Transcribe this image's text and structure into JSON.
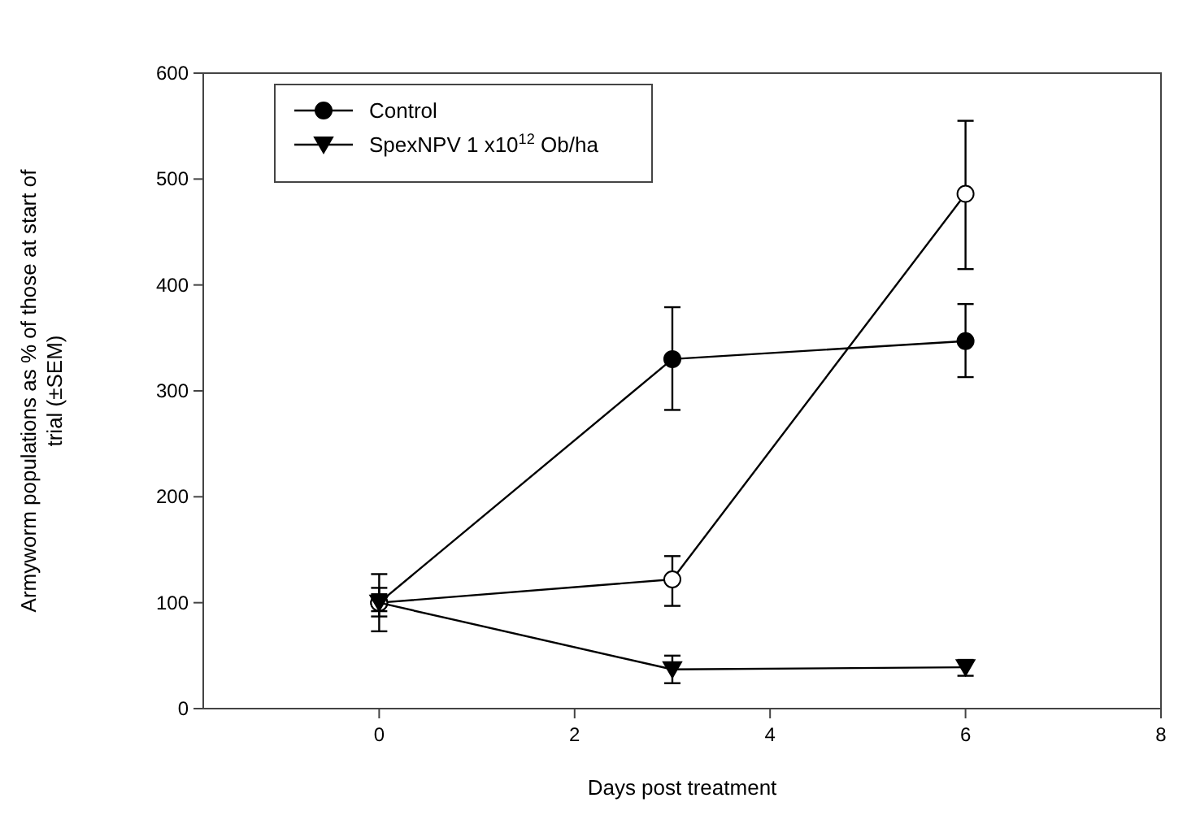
{
  "chart_data": {
    "type": "line",
    "xlabel": "Days post treatment",
    "ylabel": "Armyworm populations as % of those at start of trial (±SEM)",
    "x": [
      0,
      3,
      6
    ],
    "xlim": [
      -1.8,
      8
    ],
    "xticks": [
      0,
      2,
      4,
      6,
      8
    ],
    "ylim": [
      0,
      600
    ],
    "yticks": [
      0,
      100,
      200,
      300,
      400,
      500,
      600
    ],
    "grid": false,
    "legend": "top left",
    "line_style": "solid",
    "series": [
      {
        "name": "Control",
        "color": "#000000",
        "marker": "circle",
        "values": [
          100,
          330,
          347
        ],
        "errors": [
          [
            73,
            127
          ],
          [
            282,
            379
          ],
          [
            313,
            382
          ]
        ]
      },
      {
        "color": "#000000",
        "marker": "circle",
        "values": [
          100,
          122,
          486
        ],
        "errors": [
          [
            87,
            114
          ],
          [
            97,
            144
          ],
          [
            415,
            555
          ]
        ]
      },
      {
        "name": "SpexNPV 1 x10$^{12}$ Ob/ha",
        "color": "#000000",
        "marker": "triangle",
        "values": [
          100,
          37,
          39
        ],
        "errors": [
          [
            92,
            108
          ],
          [
            24,
            50
          ],
          [
            31,
            46
          ]
        ]
      }
    ]
  }
}
